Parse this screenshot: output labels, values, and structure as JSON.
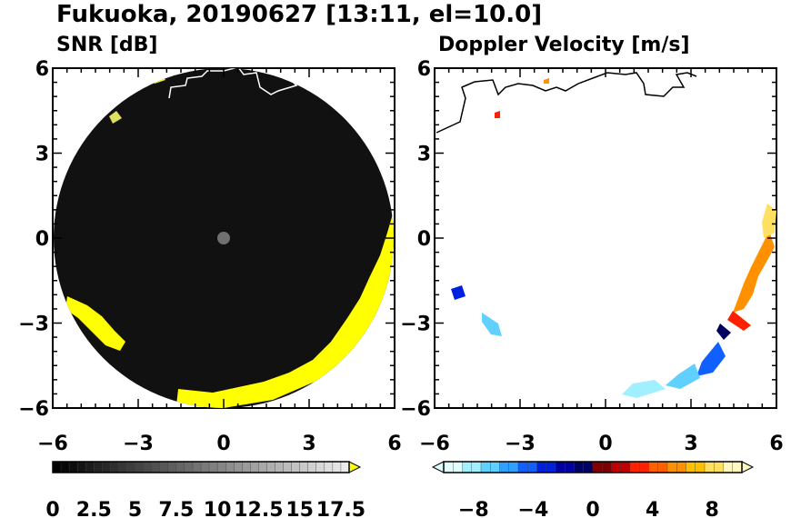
{
  "title": "Fukuoka, 20190627 [13:11, el=10.0]",
  "chart_data": [
    {
      "type": "heatmap",
      "title": "SNR [dB]",
      "x_ticks": [
        "−6",
        "−3",
        "0",
        "3",
        "6"
      ],
      "y_ticks": [
        "6",
        "3",
        "0",
        "−3",
        "−6"
      ],
      "xlim": [
        -6,
        6
      ],
      "ylim": [
        -6,
        6
      ],
      "colorbar": {
        "range": [
          0,
          18
        ],
        "ticks": [
          "0",
          "2.5",
          "5",
          "7.5",
          "10",
          "12.5",
          "15",
          "17.5"
        ],
        "tick_values": [
          0,
          2.5,
          5,
          7.5,
          10,
          12.5,
          15,
          17.5
        ],
        "low_color": "#000000",
        "high_color": "#ffffff",
        "over_color": "#ffff00"
      },
      "echo_color": "#ffff00",
      "background_color": "#111111",
      "coast_color": "#ffffff"
    },
    {
      "type": "heatmap",
      "title": "Doppler Velocity [m/s]",
      "x_ticks": [
        "−6",
        "−3",
        "0",
        "3",
        "6"
      ],
      "y_ticks": [
        "6",
        "3",
        "0",
        "−3",
        "−6"
      ],
      "xlim": [
        -6,
        6
      ],
      "ylim": [
        -6,
        6
      ],
      "colorbar": {
        "range": [
          -10,
          10
        ],
        "ticks": [
          "−8",
          "−4",
          "0",
          "4",
          "8"
        ],
        "tick_values": [
          -8,
          -4,
          0,
          4,
          8
        ],
        "negative_colors": [
          "#e0ffff",
          "#a0f0ff",
          "#60d0ff",
          "#30a0ff",
          "#1060ff",
          "#0020e0",
          "#0000a0",
          "#000060"
        ],
        "positive_colors": [
          "#800000",
          "#c00000",
          "#ff2000",
          "#ff6000",
          "#ff9000",
          "#ffc000",
          "#ffe060",
          "#fff8c0"
        ]
      },
      "coast_color": "#000000"
    }
  ]
}
